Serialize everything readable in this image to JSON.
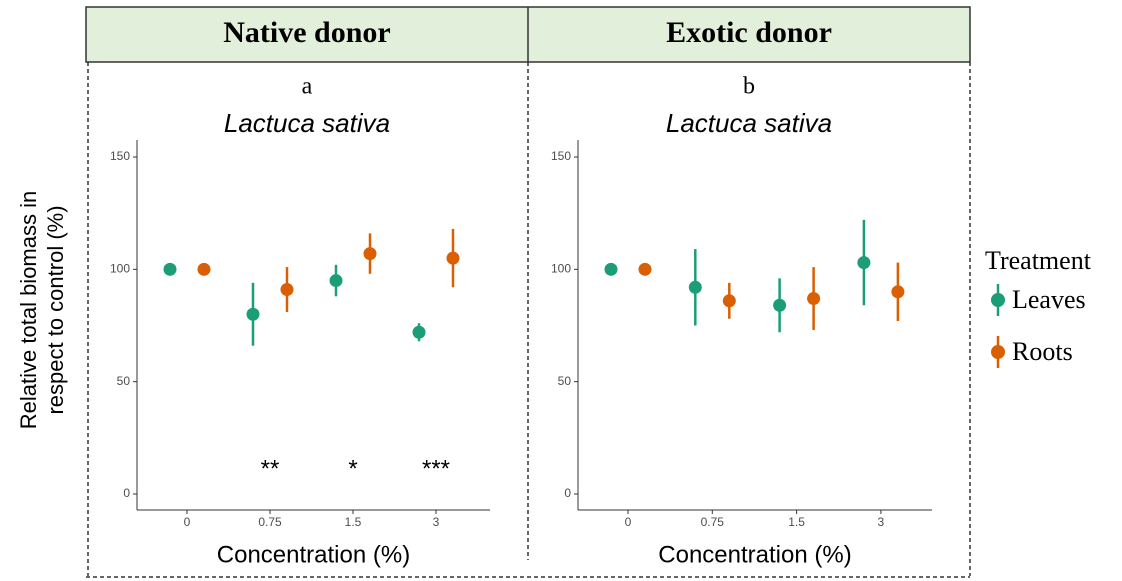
{
  "ylabel": [
    "Relative total biomass in",
    "respect to control (%)"
  ],
  "legend_title": "Treatment",
  "chart_data": [
    {
      "type": "point",
      "header": "Native donor",
      "label": "a",
      "title": "Lactuca sativa",
      "xlabel": "Concentration (%)",
      "categories": [
        "0",
        "0.75",
        "1.5",
        "3"
      ],
      "ylim": [
        0,
        150
      ],
      "yticks": [
        0,
        50,
        100,
        150
      ],
      "series": [
        {
          "name": "Leaves",
          "color": "#1b9e77",
          "values": [
            100,
            80,
            95,
            72
          ],
          "errors": [
            0,
            14,
            7,
            4
          ]
        },
        {
          "name": "Roots",
          "color": "#d95f02",
          "values": [
            100,
            91,
            107,
            105
          ],
          "errors": [
            0,
            10,
            9,
            13
          ]
        }
      ],
      "annotations": [
        {
          "text": "**",
          "category": 1
        },
        {
          "text": "*",
          "category": 2
        },
        {
          "text": "***",
          "category": 3
        }
      ]
    },
    {
      "type": "point",
      "header": "Exotic donor",
      "label": "b",
      "title": "Lactuca sativa",
      "xlabel": "Concentration (%)",
      "categories": [
        "0",
        "0.75",
        "1.5",
        "3"
      ],
      "ylim": [
        0,
        150
      ],
      "yticks": [
        0,
        50,
        100,
        150
      ],
      "series": [
        {
          "color": "#1b9e77",
          "values": [
            100,
            92,
            84,
            103
          ],
          "errors": [
            0,
            17,
            12,
            19
          ]
        },
        {
          "color": "#d95f02",
          "values": [
            100,
            86,
            87,
            90
          ],
          "errors": [
            0,
            8,
            14,
            13
          ]
        }
      ]
    }
  ]
}
